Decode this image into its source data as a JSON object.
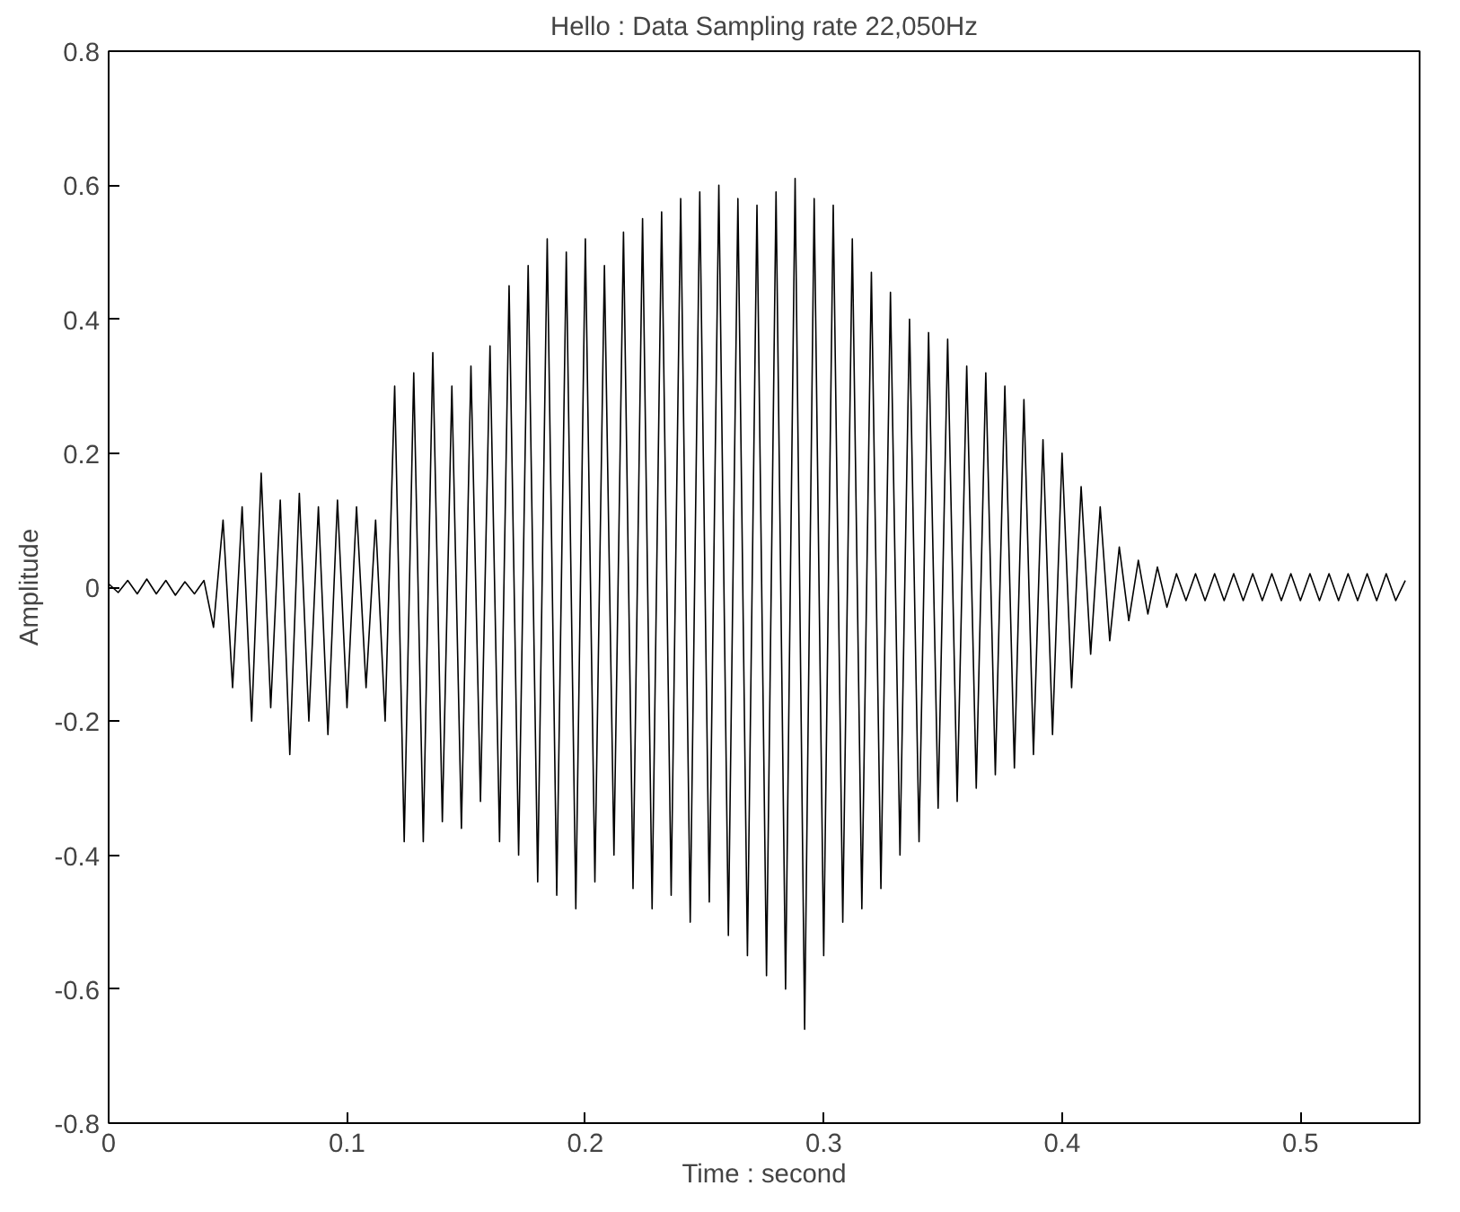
{
  "chart_data": {
    "type": "line",
    "title": "Hello : Data Sampling rate 22,050Hz",
    "xlabel": "Time : second",
    "ylabel": "Amplitude",
    "xlim": [
      0,
      0.55
    ],
    "ylim": [
      -0.8,
      0.8
    ],
    "xticks": [
      0,
      0.1,
      0.2,
      0.3,
      0.4,
      0.5
    ],
    "yticks": [
      -0.8,
      -0.6,
      -0.4,
      -0.2,
      0,
      0.2,
      0.4,
      0.6,
      0.8
    ],
    "grid": false,
    "series": [
      {
        "color": "#000000",
        "x": [
          0,
          0.004,
          0.008,
          0.012,
          0.016,
          0.02,
          0.024,
          0.028,
          0.032,
          0.036,
          0.04,
          0.044,
          0.048,
          0.052,
          0.056,
          0.06,
          0.064,
          0.068,
          0.072,
          0.076,
          0.08,
          0.084,
          0.088,
          0.092,
          0.096,
          0.1,
          0.104,
          0.108,
          0.112,
          0.116,
          0.12,
          0.124,
          0.128,
          0.132,
          0.136,
          0.14,
          0.144,
          0.148,
          0.152,
          0.156,
          0.16,
          0.164,
          0.168,
          0.172,
          0.176,
          0.18,
          0.184,
          0.188,
          0.192,
          0.196,
          0.2,
          0.204,
          0.208,
          0.212,
          0.216,
          0.22,
          0.224,
          0.228,
          0.232,
          0.236,
          0.24,
          0.244,
          0.248,
          0.252,
          0.256,
          0.26,
          0.264,
          0.268,
          0.272,
          0.276,
          0.28,
          0.284,
          0.288,
          0.292,
          0.296,
          0.3,
          0.304,
          0.308,
          0.312,
          0.316,
          0.32,
          0.324,
          0.328,
          0.332,
          0.336,
          0.34,
          0.344,
          0.348,
          0.352,
          0.356,
          0.36,
          0.364,
          0.368,
          0.372,
          0.376,
          0.38,
          0.384,
          0.388,
          0.392,
          0.396,
          0.4,
          0.404,
          0.408,
          0.412,
          0.416,
          0.42,
          0.424,
          0.428,
          0.432,
          0.436,
          0.44,
          0.444,
          0.448,
          0.452,
          0.456,
          0.46,
          0.464,
          0.468,
          0.472,
          0.476,
          0.48,
          0.484,
          0.488,
          0.492,
          0.496,
          0.5,
          0.504,
          0.508,
          0.512,
          0.516,
          0.52,
          0.524,
          0.528,
          0.532,
          0.536,
          0.54,
          0.544
        ],
        "values": [
          0.005,
          -0.008,
          0.01,
          -0.01,
          0.012,
          -0.01,
          0.01,
          -0.012,
          0.008,
          -0.01,
          0.01,
          -0.06,
          0.1,
          -0.15,
          0.12,
          -0.2,
          0.17,
          -0.18,
          0.13,
          -0.25,
          0.14,
          -0.2,
          0.12,
          -0.22,
          0.13,
          -0.18,
          0.12,
          -0.15,
          0.1,
          -0.2,
          0.3,
          -0.38,
          0.32,
          -0.38,
          0.35,
          -0.35,
          0.3,
          -0.36,
          0.33,
          -0.32,
          0.36,
          -0.38,
          0.45,
          -0.4,
          0.48,
          -0.44,
          0.52,
          -0.46,
          0.5,
          -0.48,
          0.52,
          -0.44,
          0.48,
          -0.4,
          0.53,
          -0.45,
          0.55,
          -0.48,
          0.56,
          -0.46,
          0.58,
          -0.5,
          0.59,
          -0.47,
          0.6,
          -0.52,
          0.58,
          -0.55,
          0.57,
          -0.58,
          0.59,
          -0.6,
          0.61,
          -0.66,
          0.58,
          -0.55,
          0.57,
          -0.5,
          0.52,
          -0.48,
          0.47,
          -0.45,
          0.44,
          -0.4,
          0.4,
          -0.38,
          0.38,
          -0.33,
          0.37,
          -0.32,
          0.33,
          -0.3,
          0.32,
          -0.28,
          0.3,
          -0.27,
          0.28,
          -0.25,
          0.22,
          -0.22,
          0.2,
          -0.15,
          0.15,
          -0.1,
          0.12,
          -0.08,
          0.06,
          -0.05,
          0.04,
          -0.04,
          0.03,
          -0.03,
          0.02,
          -0.02,
          0.02,
          -0.02,
          0.02,
          -0.02,
          0.02,
          -0.02,
          0.02,
          -0.02,
          0.02,
          -0.02,
          0.02,
          -0.02,
          0.02,
          -0.02,
          0.02,
          -0.02,
          0.02,
          -0.02,
          0.02,
          -0.02,
          0.02,
          -0.02,
          0.01
        ]
      }
    ]
  }
}
